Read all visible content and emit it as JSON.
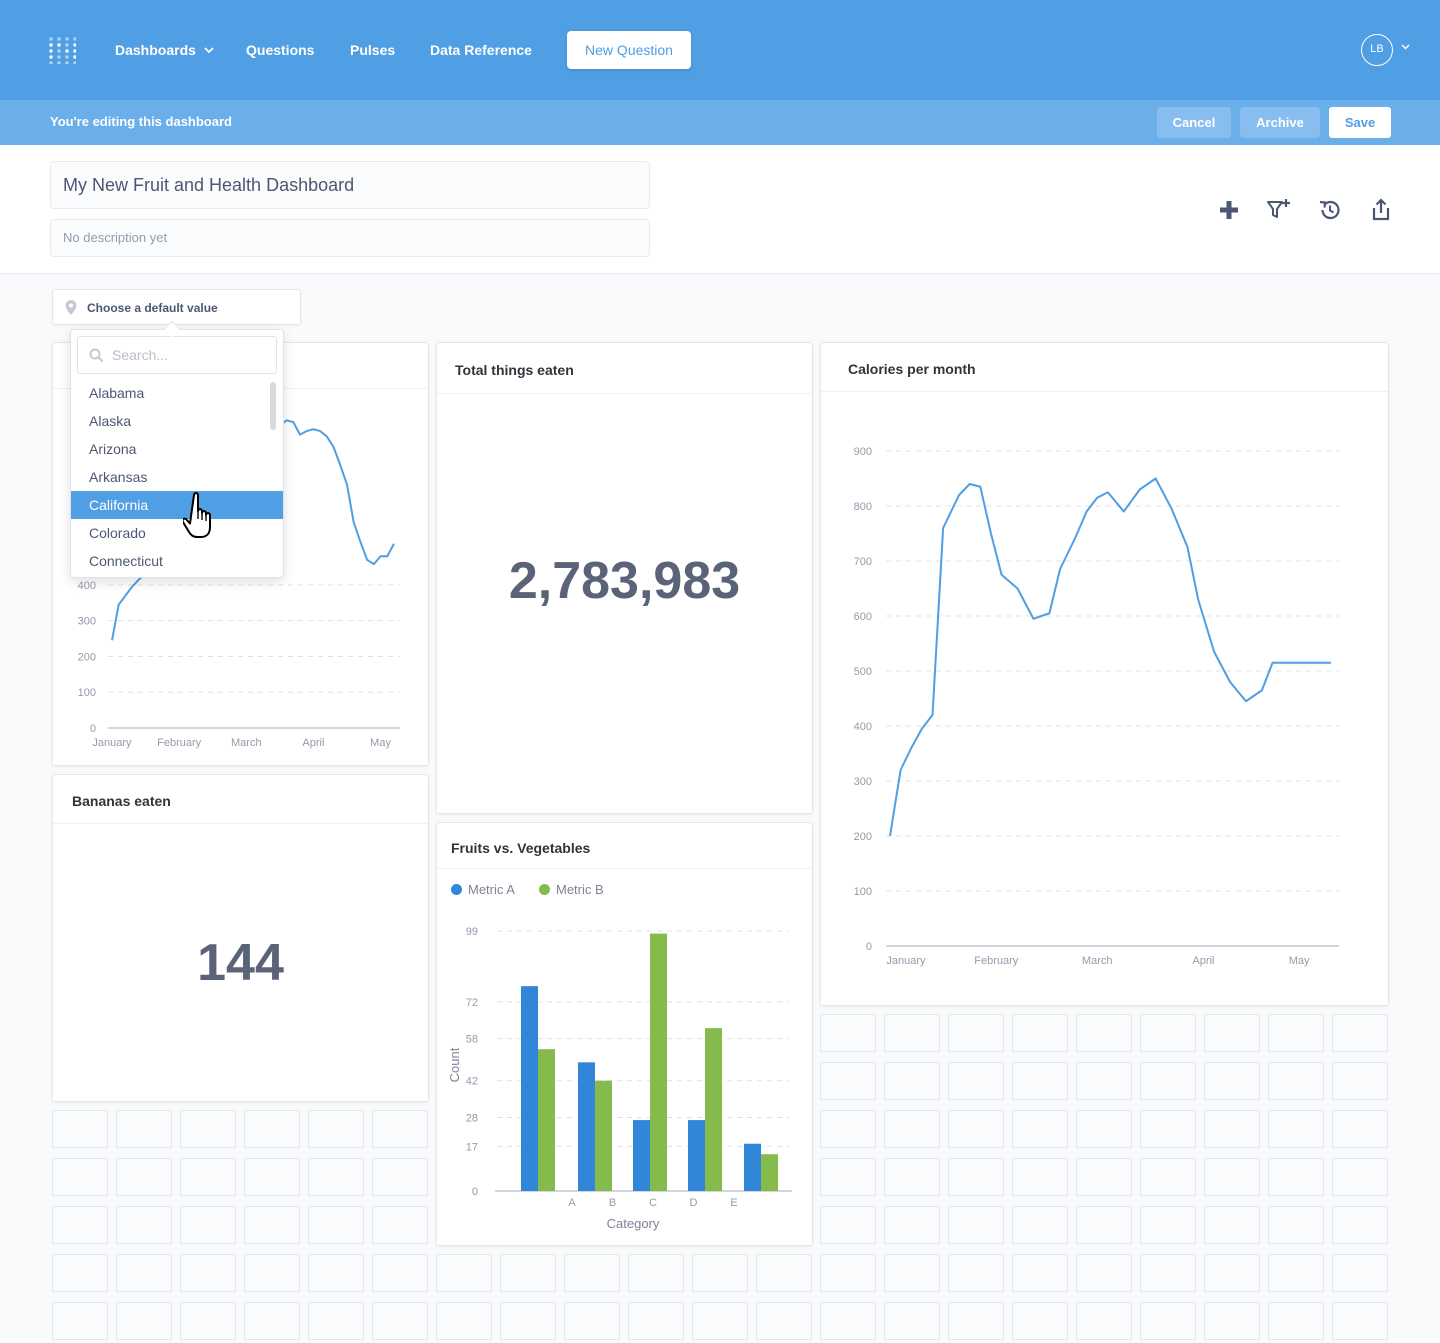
{
  "nav": {
    "dashboards": "Dashboards",
    "questions": "Questions",
    "pulses": "Pulses",
    "data_reference": "Data Reference",
    "new_question": "New Question",
    "avatar_initials": "LB"
  },
  "editbar": {
    "message": "You're editing this dashboard",
    "cancel": "Cancel",
    "archive": "Archive",
    "save": "Save"
  },
  "dashboard": {
    "title": "My New Fruit and Health Dashboard",
    "description_placeholder": "No description yet"
  },
  "filter": {
    "label": "Choose a default value",
    "search_placeholder": "Search...",
    "options": [
      "Alabama",
      "Alaska",
      "Arizona",
      "Arkansas",
      "California",
      "Colorado",
      "Connecticut"
    ],
    "selected": "California"
  },
  "cards": {
    "left_line": {
      "y_ticks": [
        "0",
        "100",
        "200",
        "300",
        "400"
      ],
      "x_ticks": [
        "January",
        "February",
        "March",
        "April",
        "May"
      ]
    },
    "total_things": {
      "title": "Total things eaten",
      "value": "2,783,983"
    },
    "calories": {
      "title": "Calories per month",
      "y_ticks": [
        "0",
        "100",
        "200",
        "300",
        "400",
        "500",
        "600",
        "700",
        "800",
        "900"
      ],
      "x_ticks": [
        "January",
        "February",
        "March",
        "April",
        "May"
      ]
    },
    "bananas": {
      "title": "Bananas eaten",
      "value": "144"
    },
    "fruits_veg": {
      "title": "Fruits vs. Vegetables",
      "legend_a": "Metric A",
      "legend_b": "Metric B",
      "ylabel": "Count",
      "xlabel": "Category"
    }
  },
  "colors": {
    "brand": "#509ee3",
    "metric_a": "#3286d7",
    "metric_b": "#84bb4c"
  },
  "chart_data": [
    {
      "type": "line",
      "title": "",
      "x": [
        0.0,
        0.1,
        0.2,
        0.3,
        0.4,
        0.5,
        0.6,
        0.7,
        0.8,
        0.9,
        1.0,
        1.1,
        1.2,
        1.3,
        1.4,
        1.5,
        1.6,
        1.7,
        1.8,
        1.9,
        2.0,
        2.1,
        2.2,
        2.3,
        2.4,
        2.5,
        2.6,
        2.7,
        2.8,
        2.9,
        3.0,
        3.1,
        3.2,
        3.3,
        3.4,
        3.5,
        3.6,
        3.7,
        3.8,
        3.9,
        4.0,
        4.1,
        4.2
      ],
      "series": [
        {
          "values": [
            245,
            345,
            370,
            395,
            415,
            430,
            450,
            470,
            490,
            505,
            520,
            540,
            560,
            600,
            640,
            680,
            720,
            740,
            765,
            790,
            810,
            820,
            825,
            830,
            835,
            845,
            860,
            855,
            820,
            830,
            835,
            830,
            815,
            785,
            735,
            680,
            575,
            520,
            470,
            458,
            480,
            480,
            515
          ]
        }
      ],
      "x_tick_labels": [
        "January",
        "February",
        "March",
        "April",
        "May"
      ],
      "x_tick_positions": [
        0,
        1,
        2,
        3,
        4
      ],
      "ylim": [
        0,
        900
      ],
      "y_ticks": [
        0,
        100,
        200,
        300,
        400
      ],
      "grid": true
    },
    {
      "type": "line",
      "title": "Calories per month",
      "x": [
        0.0,
        0.1,
        0.2,
        0.3,
        0.4,
        0.5,
        0.65,
        0.75,
        0.85,
        0.95,
        1.05,
        1.2,
        1.35,
        1.5,
        1.6,
        1.75,
        1.85,
        1.95,
        2.05,
        2.2,
        2.35,
        2.5,
        2.65,
        2.8,
        2.9,
        3.05,
        3.2,
        3.35,
        3.5,
        3.6,
        3.75,
        3.9,
        4.05,
        4.15
      ],
      "series": [
        {
          "values": [
            200,
            320,
            360,
            395,
            420,
            760,
            820,
            840,
            835,
            750,
            675,
            650,
            595,
            605,
            685,
            745,
            790,
            815,
            825,
            790,
            830,
            850,
            795,
            725,
            630,
            535,
            480,
            445,
            465,
            515,
            515,
            515,
            515,
            515
          ]
        }
      ],
      "x_tick_labels": [
        "January",
        "February",
        "March",
        "April",
        "May"
      ],
      "x_tick_positions": [
        0.15,
        1.0,
        1.95,
        2.95,
        3.85
      ],
      "ylim": [
        0,
        900
      ],
      "y_ticks": [
        0,
        100,
        200,
        300,
        400,
        500,
        600,
        700,
        800,
        900
      ],
      "grid": true
    },
    {
      "type": "bar",
      "title": "Fruits vs. Vegetables",
      "categories": [
        "A",
        "B",
        "C",
        "D",
        "E"
      ],
      "series": [
        {
          "name": "Metric A",
          "values": [
            78,
            49,
            27,
            27,
            18
          ]
        },
        {
          "name": "Metric B",
          "values": [
            54,
            42,
            98,
            62,
            14
          ]
        }
      ],
      "xlabel": "Category",
      "ylabel": "Count",
      "y_ticks": [
        0,
        17,
        28,
        42,
        58,
        72,
        99
      ],
      "ylim": [
        0,
        99
      ],
      "legend": "top-left",
      "grid": true
    }
  ]
}
